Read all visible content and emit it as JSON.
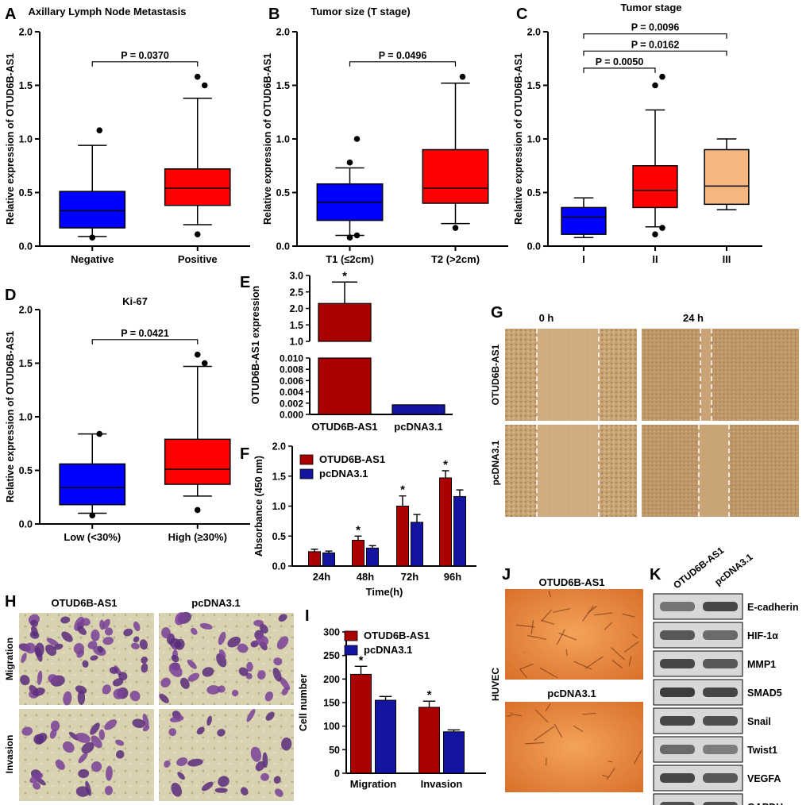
{
  "panel_letters": [
    "A",
    "B",
    "C",
    "D",
    "E",
    "F",
    "G",
    "H",
    "I",
    "J",
    "K"
  ],
  "chart_data": [
    {
      "id": "A",
      "type": "box",
      "title": "Axillary Lymph Node Metastasis",
      "ylabel": "Relative expression of OTUD6B-AS1",
      "ylim": [
        0,
        2.0
      ],
      "yticks": [
        "0.0",
        "0.5",
        "1.0",
        "1.5",
        "2.0"
      ],
      "categories": [
        "Negative",
        "Positive"
      ],
      "boxes": [
        {
          "q1": 0.17,
          "median": 0.33,
          "q3": 0.51,
          "whisker_low": 0.09,
          "whisker_high": 0.94,
          "outliers": [
            0.08,
            1.08
          ],
          "color": "#0000ff"
        },
        {
          "q1": 0.38,
          "median": 0.54,
          "q3": 0.72,
          "whisker_low": 0.2,
          "whisker_high": 1.38,
          "outliers": [
            0.11,
            1.5,
            1.58
          ],
          "color": "#ff0000"
        }
      ],
      "brackets": [
        {
          "from": 0,
          "to": 1,
          "y": 1.72,
          "label": "P = 0.0370"
        }
      ]
    },
    {
      "id": "B",
      "type": "box",
      "title": "Tumor size (T stage)",
      "ylabel": "Relative expression of OTUD6B-AS1",
      "ylim": [
        0,
        2.0
      ],
      "yticks": [
        "0.0",
        "0.5",
        "1.0",
        "1.5",
        "2.0"
      ],
      "categories": [
        "T1 (≤2cm)",
        "T2  (>2cm)"
      ],
      "boxes": [
        {
          "q1": 0.24,
          "median": 0.41,
          "q3": 0.58,
          "whisker_low": 0.1,
          "whisker_high": 0.73,
          "outliers": [
            0.08,
            0.1,
            0.78,
            1.0
          ],
          "color": "#0000ff"
        },
        {
          "q1": 0.4,
          "median": 0.54,
          "q3": 0.9,
          "whisker_low": 0.21,
          "whisker_high": 1.52,
          "outliers": [
            0.17,
            1.58
          ],
          "color": "#ff0000"
        }
      ],
      "brackets": [
        {
          "from": 0,
          "to": 1,
          "y": 1.72,
          "label": "P = 0.0496"
        }
      ]
    },
    {
      "id": "C",
      "type": "box",
      "title": "Tumor stage",
      "ylabel": "Relative expression of OTUD6B-AS1",
      "ylim": [
        0,
        2.0
      ],
      "yticks": [
        "0.0",
        "0.5",
        "1.0",
        "1.5",
        "2.0"
      ],
      "categories": [
        "I",
        "II",
        "III"
      ],
      "boxes": [
        {
          "q1": 0.11,
          "median": 0.27,
          "q3": 0.36,
          "whisker_low": 0.08,
          "whisker_high": 0.45,
          "outliers": [],
          "color": "#0000ff"
        },
        {
          "q1": 0.36,
          "median": 0.52,
          "q3": 0.75,
          "whisker_low": 0.18,
          "whisker_high": 1.27,
          "outliers": [
            0.11,
            0.17,
            1.5,
            1.58
          ],
          "color": "#ff0000"
        },
        {
          "q1": 0.39,
          "median": 0.56,
          "q3": 0.9,
          "whisker_low": 0.34,
          "whisker_high": 1.0,
          "outliers": [],
          "color": "#f6b77e"
        }
      ],
      "brackets": [
        {
          "from": 0,
          "to": 1,
          "y": 1.66,
          "label": "P = 0.0050"
        },
        {
          "from": 0,
          "to": 2,
          "y": 1.82,
          "label": "P = 0.0162"
        },
        {
          "from": 0,
          "to": 2,
          "y": 1.98,
          "label": "P = 0.0096"
        }
      ]
    },
    {
      "id": "D",
      "type": "box",
      "title": "Ki-67",
      "ylabel": "Relative expression of OTUD6B-AS1",
      "ylim": [
        0,
        2.0
      ],
      "yticks": [
        "0.0",
        "0.5",
        "1.0",
        "1.5",
        "2.0"
      ],
      "categories": [
        "Low (<30%)",
        "High (≥30%)"
      ],
      "boxes": [
        {
          "q1": 0.18,
          "median": 0.34,
          "q3": 0.56,
          "whisker_low": 0.1,
          "whisker_high": 0.84,
          "outliers": [
            0.08,
            0.84
          ],
          "color": "#0000ff"
        },
        {
          "q1": 0.37,
          "median": 0.51,
          "q3": 0.79,
          "whisker_low": 0.26,
          "whisker_high": 1.47,
          "outliers": [
            0.13,
            1.5,
            1.58
          ],
          "color": "#ff0000"
        }
      ],
      "brackets": [
        {
          "from": 0,
          "to": 1,
          "y": 1.72,
          "label": "P = 0.0421"
        }
      ]
    },
    {
      "id": "E",
      "type": "bar",
      "ylabel": "OTUD6B-AS1 expression",
      "axis_break": true,
      "upper_ylim": [
        1.0,
        3.0
      ],
      "upper_yticks": [
        "1.0",
        "1.5",
        "2.0",
        "2.5",
        "3.0"
      ],
      "lower_ylim": [
        0,
        0.01
      ],
      "lower_yticks": [
        "0.000",
        "0.002",
        "0.004",
        "0.006",
        "0.008",
        "0.010"
      ],
      "categories": [
        "OTUD6B-AS1",
        "pcDNA3.1"
      ],
      "values": [
        2.15,
        0.0017
      ],
      "errors": [
        0.65,
        0
      ],
      "colors": [
        "#aa0000",
        "#1414a0"
      ],
      "annotations": [
        "*",
        ""
      ]
    },
    {
      "id": "F",
      "type": "bar",
      "ylabel": "Absorbance (450 nm)",
      "xlabel": "Time(h)",
      "ylim": [
        0,
        2.0
      ],
      "yticks": [
        "0.0",
        "0.5",
        "1.0",
        "1.5",
        "2.0"
      ],
      "categories": [
        "24h",
        "48h",
        "72h",
        "96h"
      ],
      "series": [
        {
          "name": "OTUD6B-AS1",
          "values": [
            0.24,
            0.43,
            1.0,
            1.47
          ],
          "errors": [
            0.04,
            0.07,
            0.17,
            0.12
          ],
          "color": "#aa0000"
        },
        {
          "name": "pcDNA3.1",
          "values": [
            0.22,
            0.3,
            0.73,
            1.16
          ],
          "errors": [
            0.03,
            0.04,
            0.13,
            0.11
          ],
          "color": "#1414a0"
        }
      ],
      "annotations": [
        "",
        "*",
        "*",
        "*"
      ],
      "legend": "top-left"
    },
    {
      "id": "I",
      "type": "bar",
      "ylabel": "Cell number",
      "ylim": [
        0,
        300
      ],
      "yticks": [
        "0",
        "50",
        "100",
        "150",
        "200",
        "250",
        "300"
      ],
      "categories": [
        "Migration",
        "Invasion"
      ],
      "series": [
        {
          "name": "OTUD6B-AS1",
          "values": [
            210,
            140
          ],
          "errors": [
            17,
            13
          ],
          "color": "#aa0000"
        },
        {
          "name": "pcDNA3.1",
          "values": [
            155,
            88
          ],
          "errors": [
            8,
            4
          ],
          "color": "#1414a0"
        }
      ],
      "annotations": [
        "*",
        "*"
      ],
      "legend": "top-left"
    }
  ],
  "panel_g": {
    "col_labels": [
      "0 h",
      "24 h"
    ],
    "row_labels": [
      "OTUD6B-AS1",
      "pcDNA3.1"
    ]
  },
  "panel_h": {
    "col_labels": [
      "OTUD6B-AS1",
      "pcDNA3.1"
    ],
    "row_labels": [
      "Migration",
      "Invasion"
    ]
  },
  "panel_j": {
    "side_label": "HUVEC",
    "image_labels": [
      "OTUD6B-AS1",
      "pcDNA3.1"
    ]
  },
  "panel_k": {
    "col_labels": [
      "OTUD6B-AS1",
      "pcDNA3.1"
    ],
    "proteins": [
      "E-cadherin",
      "HIF-1α",
      "MMP1",
      "SMAD5",
      "Snail",
      "Twist1",
      "VEGFA",
      "GAPDH"
    ]
  }
}
